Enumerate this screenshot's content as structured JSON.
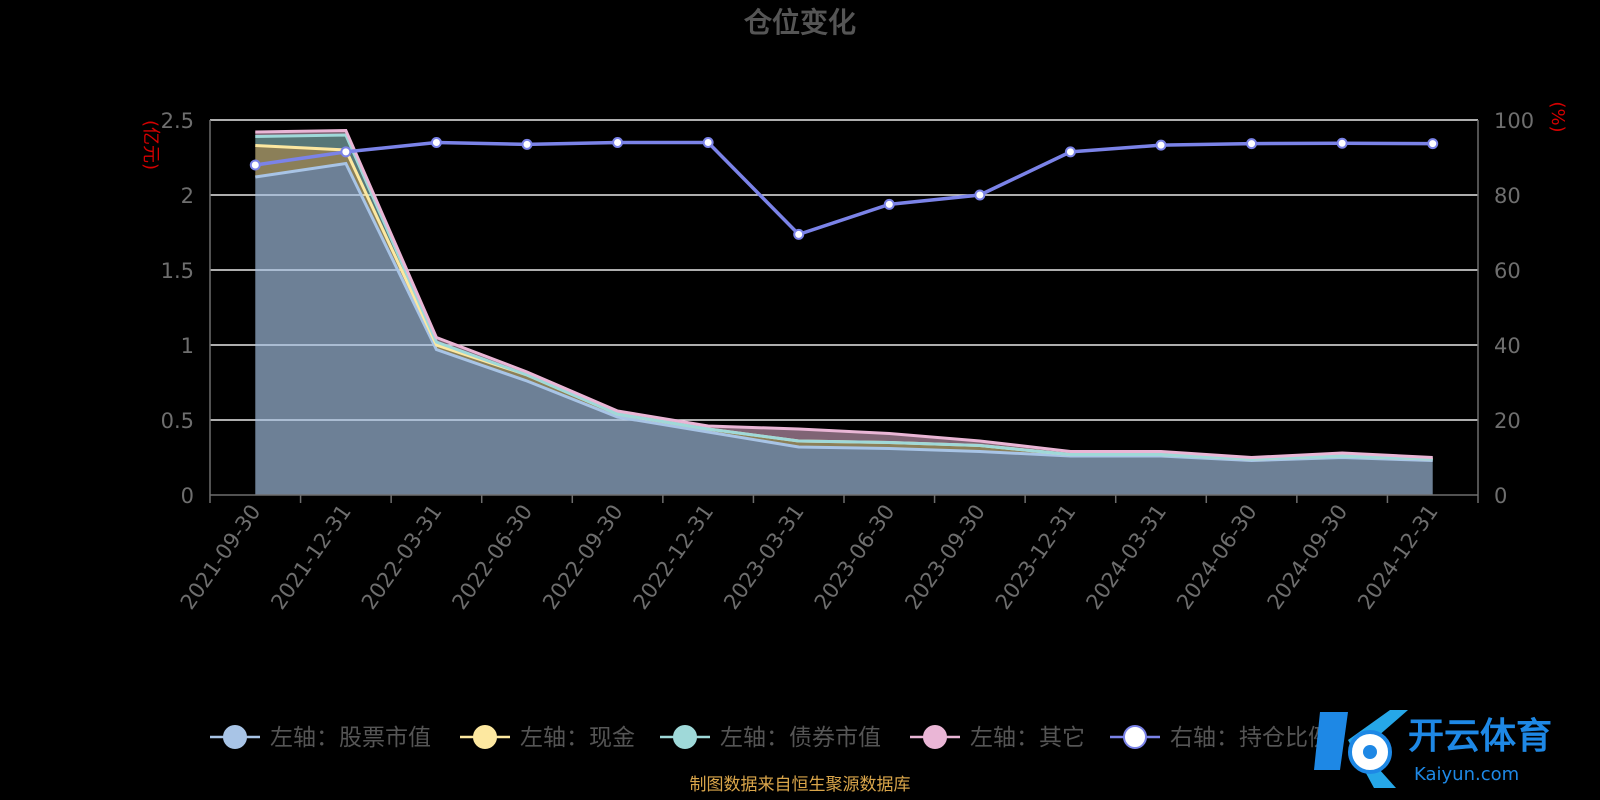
{
  "chart_data": {
    "type": "area",
    "title": "仓位变化",
    "left_unit": "亿元",
    "right_unit": "%",
    "categories": [
      "2021-09-30",
      "2021-12-31",
      "2022-03-31",
      "2022-06-30",
      "2022-09-30",
      "2022-12-31",
      "2023-03-31",
      "2023-06-30",
      "2023-09-30",
      "2023-12-31",
      "2024-03-31",
      "2024-06-30",
      "2024-09-30",
      "2024-12-31"
    ],
    "left_axis": {
      "min": 0,
      "max": 2.5,
      "ticks": [
        "0",
        "0.5",
        "1",
        "1.5",
        "2",
        "2.5"
      ]
    },
    "right_axis": {
      "min": 0,
      "max": 100,
      "ticks": [
        "0",
        "20",
        "40",
        "60",
        "80",
        "100"
      ]
    },
    "series": [
      {
        "name": "左轴：股票市值",
        "axis": "left",
        "stack": true,
        "color": "#a8c4e6",
        "values": [
          2.12,
          2.21,
          0.97,
          0.76,
          0.52,
          0.42,
          0.32,
          0.31,
          0.29,
          0.26,
          0.26,
          0.23,
          0.25,
          0.23
        ]
      },
      {
        "name": "左轴：现金",
        "axis": "left",
        "stack": true,
        "color": "#fde8a0",
        "values": [
          0.21,
          0.09,
          0.03,
          0.04,
          0.02,
          0.02,
          0.04,
          0.04,
          0.04,
          0.01,
          0.01,
          0.01,
          0.01,
          0.01
        ]
      },
      {
        "name": "左轴：债券市值",
        "axis": "left",
        "stack": true,
        "color": "#9fd9d9",
        "values": [
          0.06,
          0.1,
          0.02,
          0.0,
          0.0,
          0.0,
          0.0,
          0.0,
          0.0,
          0.0,
          0.0,
          0.0,
          0.0,
          0.0
        ]
      },
      {
        "name": "左轴：其它",
        "axis": "left",
        "stack": true,
        "color": "#eab6d6",
        "values": [
          0.03,
          0.03,
          0.03,
          0.02,
          0.02,
          0.02,
          0.08,
          0.06,
          0.03,
          0.02,
          0.02,
          0.01,
          0.02,
          0.01
        ]
      },
      {
        "name": "右轴：持仓比例",
        "axis": "right",
        "stack": false,
        "color": "#7b83e8",
        "values": [
          88,
          91.5,
          94,
          93.5,
          94,
          94,
          69.5,
          77.5,
          80,
          91.5,
          93.3,
          93.7,
          93.8,
          93.7
        ]
      }
    ],
    "legend_position": "bottom",
    "grid": true,
    "source": "制图数据来自恒生聚源数据库"
  },
  "watermark": {
    "text": "开云体育",
    "sub": "Kaiyun.com"
  }
}
